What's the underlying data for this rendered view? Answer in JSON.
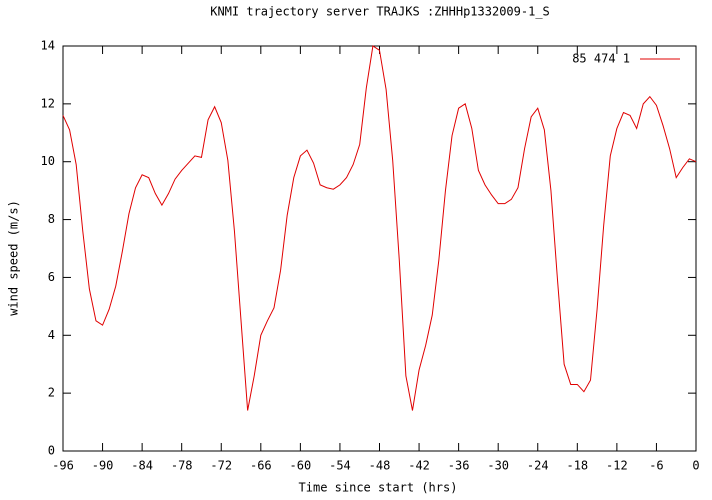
{
  "chart_data": {
    "type": "line",
    "title": "KNMI trajectory server TRAJKS :ZHHHp1332009-1_S",
    "x_label": "Time since start (hrs)",
    "y_label": "wind speed (m/s)",
    "x": [
      -96,
      -95,
      -94,
      -93,
      -92,
      -91,
      -90,
      -89,
      -88,
      -87,
      -86,
      -85,
      -84,
      -83,
      -82,
      -81,
      -80,
      -79,
      -78,
      -77,
      -76,
      -75,
      -74,
      -73,
      -72,
      -71,
      -70,
      -69,
      -68,
      -67,
      -66,
      -65,
      -64,
      -63,
      -62,
      -61,
      -60,
      -59,
      -58,
      -57,
      -56,
      -55,
      -54,
      -53,
      -52,
      -51,
      -50,
      -49,
      -48,
      -47,
      -46,
      -45,
      -44,
      -43,
      -42,
      -41,
      -40,
      -39,
      -38,
      -37,
      -36,
      -35,
      -34,
      -33,
      -32,
      -31,
      -30,
      -29,
      -28,
      -27,
      -26,
      -25,
      -24,
      -23,
      -22,
      -21,
      -20,
      -19,
      -18,
      -17,
      -16,
      -15,
      -14,
      -13,
      -12,
      -11,
      -10,
      -9,
      -8,
      -7,
      -6,
      -5,
      -4,
      -3,
      -2,
      -1,
      0
    ],
    "series": [
      {
        "name": "85 474 1",
        "color": "#e00000",
        "values": [
          11.6,
          11.1,
          9.9,
          7.6,
          5.6,
          4.5,
          4.35,
          4.9,
          5.7,
          6.9,
          8.2,
          9.1,
          9.55,
          9.45,
          8.9,
          8.5,
          8.9,
          9.4,
          9.7,
          9.95,
          10.2,
          10.15,
          11.45,
          11.9,
          11.35,
          10.05,
          7.6,
          4.5,
          1.4,
          2.6,
          4.0,
          4.5,
          4.95,
          6.25,
          8.15,
          9.45,
          10.2,
          10.4,
          9.95,
          9.2,
          9.1,
          9.05,
          9.2,
          9.45,
          9.9,
          10.6,
          12.55,
          14.0,
          13.85,
          12.5,
          10.05,
          6.6,
          2.6,
          1.4,
          2.8,
          3.65,
          4.7,
          6.6,
          9.0,
          10.9,
          11.85,
          12.0,
          11.15,
          9.7,
          9.2,
          8.85,
          8.55,
          8.55,
          8.7,
          9.1,
          10.45,
          11.55,
          11.85,
          11.1,
          9.0,
          5.9,
          3.0,
          2.3,
          2.3,
          2.05,
          2.45,
          4.9,
          7.8,
          10.2,
          11.15,
          11.7,
          11.6,
          11.15,
          12.0,
          12.25,
          11.95,
          11.25,
          10.45,
          9.45,
          9.8,
          10.1,
          10.0
        ]
      }
    ],
    "xlim": [
      -96,
      0
    ],
    "xticks": [
      -96,
      -90,
      -84,
      -78,
      -72,
      -66,
      -60,
      -54,
      -48,
      -42,
      -36,
      -30,
      -24,
      -18,
      -12,
      -6,
      0
    ],
    "ylim": [
      0,
      14
    ],
    "yticks": [
      0,
      2,
      4,
      6,
      8,
      10,
      12,
      14
    ],
    "legend": "top-right",
    "grid": false
  }
}
